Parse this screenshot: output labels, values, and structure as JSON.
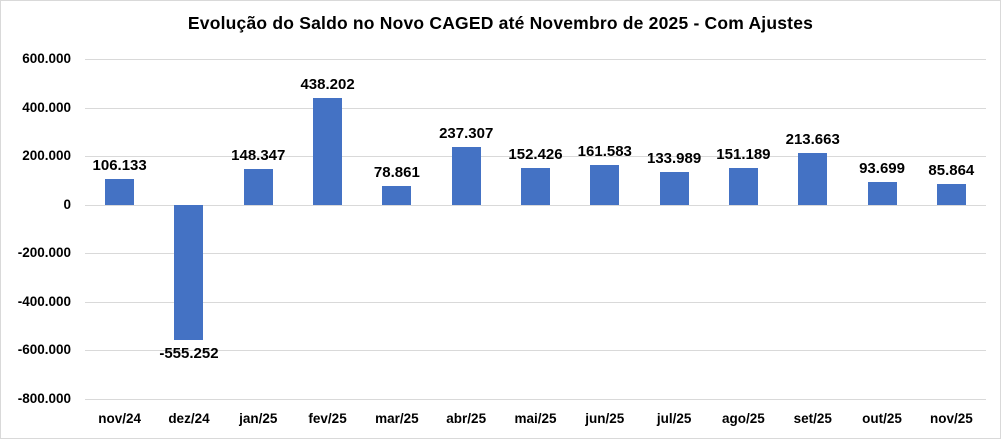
{
  "title": "Evolução do Saldo no Novo CAGED até Novembro de 2025 - Com Ajustes",
  "chart_data": {
    "type": "bar",
    "title": "Evolução do Saldo no Novo CAGED até Novembro de 2025 - Com Ajustes",
    "categories": [
      "nov/24",
      "dez/24",
      "jan/25",
      "fev/25",
      "mar/25",
      "abr/25",
      "mai/25",
      "jun/25",
      "jul/25",
      "ago/25",
      "set/25",
      "out/25",
      "nov/25"
    ],
    "values": [
      106133,
      -555252,
      148347,
      438202,
      78861,
      237307,
      152426,
      161583,
      133989,
      151189,
      213663,
      93699,
      85864
    ],
    "data_labels": [
      "106.133",
      "-555.252",
      "148.347",
      "438.202",
      "78.861",
      "237.307",
      "152.426",
      "161.583",
      "133.989",
      "151.189",
      "213.663",
      "93.699",
      "85.864"
    ],
    "xlabel": "",
    "ylabel": "",
    "ylim": [
      -800000,
      600000
    ],
    "yticks": [
      {
        "label": "600.000",
        "value": 600000
      },
      {
        "label": "400.000",
        "value": 400000
      },
      {
        "label": "200.000",
        "value": 200000
      },
      {
        "label": "0",
        "value": 0
      },
      {
        "label": "-200.000",
        "value": -200000
      },
      {
        "label": "-400.000",
        "value": -400000
      },
      {
        "label": "-600.000",
        "value": -600000
      },
      {
        "label": "-800.000",
        "value": -800000
      }
    ],
    "grid": true,
    "legend": "none",
    "bar_color": "#4472C4",
    "gridline_color": "#d9d9d9",
    "text_color": "#000000"
  }
}
